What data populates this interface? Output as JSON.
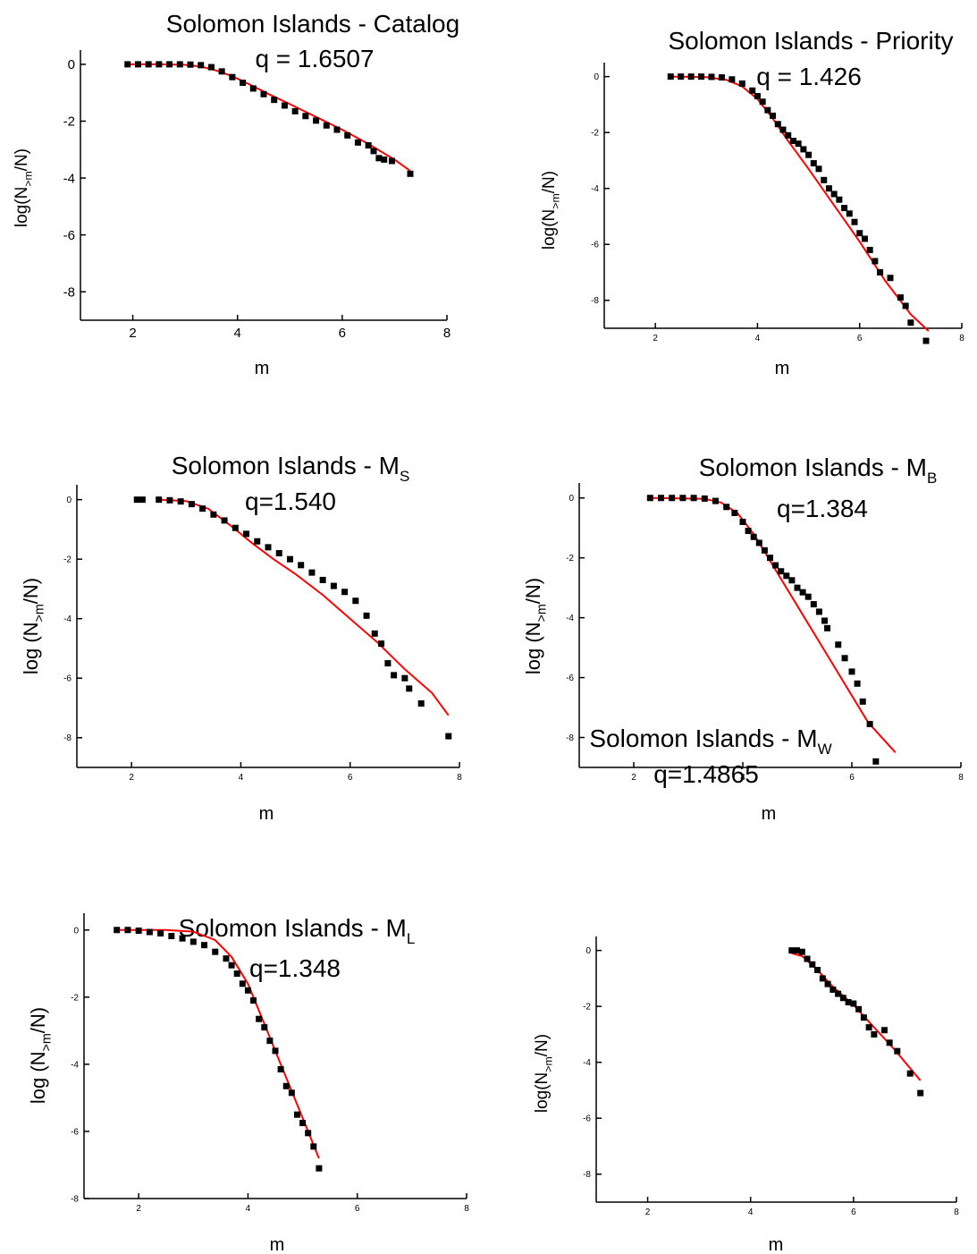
{
  "chart_data": [
    {
      "type": "scatter",
      "title_parts": [
        "Solomon Islands - Catalog"
      ],
      "annotation": "q = 1.6507",
      "xlabel": "m",
      "ylabel_parts": [
        "log(N",
        ">m",
        "/N)"
      ],
      "xlim": [
        1,
        8
      ],
      "ylim": [
        -9,
        0.5
      ],
      "xticks": [
        2,
        4,
        6,
        8
      ],
      "yticks": [
        0,
        -2,
        -4,
        -6,
        -8
      ],
      "points": {
        "color": "#000000",
        "x": [
          1.9,
          2.1,
          2.3,
          2.5,
          2.7,
          2.9,
          3.1,
          3.3,
          3.5,
          3.7,
          3.9,
          4.1,
          4.3,
          4.5,
          4.7,
          4.9,
          5.1,
          5.3,
          5.5,
          5.7,
          5.9,
          6.1,
          6.3,
          6.5,
          6.6,
          6.7,
          6.8,
          6.95,
          7.3
        ],
        "values": [
          0,
          0,
          0,
          0,
          0,
          0,
          -0.01,
          -0.03,
          -0.1,
          -0.25,
          -0.45,
          -0.65,
          -0.85,
          -1.05,
          -1.25,
          -1.45,
          -1.65,
          -1.82,
          -1.98,
          -2.15,
          -2.3,
          -2.5,
          -2.75,
          -2.85,
          -3.05,
          -3.3,
          -3.35,
          -3.4,
          -3.85
        ]
      },
      "fit": {
        "color": "#ff0000",
        "x": [
          1.9,
          2.5,
          3.0,
          3.3,
          3.6,
          3.9,
          4.2,
          4.6,
          5.0,
          5.5,
          6.0,
          6.5,
          7.0,
          7.3
        ],
        "values": [
          0,
          0,
          -0.02,
          -0.08,
          -0.22,
          -0.42,
          -0.68,
          -1.05,
          -1.4,
          -1.85,
          -2.3,
          -2.8,
          -3.35,
          -3.75
        ]
      }
    },
    {
      "type": "scatter",
      "title_parts": [
        "Solomon Islands - Priority"
      ],
      "annotation": "q = 1.426",
      "xlabel": "m",
      "ylabel_parts": [
        "log(N",
        ">m",
        "/N)"
      ],
      "xlim": [
        1,
        8
      ],
      "ylim": [
        -9,
        0.5
      ],
      "xticks": [
        2,
        4,
        6,
        8
      ],
      "yticks": [
        0,
        -2,
        -4,
        -6,
        -8
      ],
      "points": {
        "color": "#000000",
        "x": [
          2.3,
          2.5,
          2.7,
          2.9,
          3.1,
          3.3,
          3.5,
          3.7,
          3.9,
          4.0,
          4.1,
          4.2,
          4.3,
          4.4,
          4.5,
          4.6,
          4.7,
          4.8,
          4.9,
          5.0,
          5.1,
          5.2,
          5.3,
          5.4,
          5.5,
          5.6,
          5.7,
          5.8,
          5.9,
          6.0,
          6.1,
          6.2,
          6.3,
          6.4,
          6.6,
          6.8,
          6.9,
          7.0,
          7.3
        ],
        "values": [
          0,
          0,
          0,
          0,
          -0.01,
          -0.03,
          -0.1,
          -0.25,
          -0.5,
          -0.7,
          -0.9,
          -1.2,
          -1.4,
          -1.7,
          -1.9,
          -2.1,
          -2.3,
          -2.4,
          -2.6,
          -2.8,
          -3.1,
          -3.3,
          -3.7,
          -4.0,
          -4.2,
          -4.4,
          -4.7,
          -4.9,
          -5.2,
          -5.6,
          -5.8,
          -6.2,
          -6.6,
          -7.0,
          -7.2,
          -7.9,
          -8.2,
          -8.8,
          -9.45
        ]
      },
      "fit": {
        "color": "#ff0000",
        "x": [
          2.3,
          3.0,
          3.4,
          3.7,
          4.0,
          4.3,
          4.6,
          5.0,
          5.5,
          6.0,
          6.5,
          7.0,
          7.35
        ],
        "values": [
          0,
          -0.02,
          -0.12,
          -0.35,
          -0.8,
          -1.5,
          -2.3,
          -3.3,
          -4.6,
          -5.9,
          -7.3,
          -8.5,
          -9.1
        ]
      }
    },
    {
      "type": "scatter",
      "title_parts": [
        "Solomon Islands - M",
        "S"
      ],
      "annotation": "q=1.540",
      "xlabel": "m",
      "ylabel_parts": [
        "log (N",
        ">m",
        "/N)"
      ],
      "xlim": [
        1,
        8
      ],
      "ylim": [
        -9,
        0.5
      ],
      "xticks": [
        2,
        4,
        6,
        8
      ],
      "yticks": [
        0,
        -2,
        -4,
        -6,
        -8
      ],
      "points": {
        "color": "#000000",
        "x": [
          2.1,
          2.2,
          2.5,
          2.7,
          2.9,
          3.1,
          3.3,
          3.5,
          3.7,
          3.9,
          4.1,
          4.3,
          4.5,
          4.7,
          4.9,
          5.1,
          5.3,
          5.5,
          5.7,
          5.9,
          6.1,
          6.3,
          6.45,
          6.57,
          6.69,
          6.8,
          7.0,
          7.08,
          7.3,
          7.8
        ],
        "values": [
          0,
          0,
          0,
          -0.02,
          -0.06,
          -0.15,
          -0.3,
          -0.5,
          -0.7,
          -0.95,
          -1.15,
          -1.4,
          -1.6,
          -1.8,
          -2.0,
          -2.2,
          -2.45,
          -2.7,
          -2.9,
          -3.1,
          -3.4,
          -3.9,
          -4.5,
          -4.84,
          -5.5,
          -5.9,
          -6.0,
          -6.35,
          -6.85,
          -7.95
        ]
      },
      "fit": {
        "color": "#ff0000",
        "x": [
          2.5,
          3.0,
          3.4,
          3.8,
          4.2,
          4.6,
          5.0,
          5.5,
          6.0,
          6.5,
          7.0,
          7.5,
          7.8
        ],
        "values": [
          0,
          -0.05,
          -0.3,
          -0.85,
          -1.45,
          -2.0,
          -2.5,
          -3.2,
          -4.0,
          -4.8,
          -5.7,
          -6.5,
          -7.25
        ]
      }
    },
    {
      "type": "scatter",
      "title_parts": [
        "Solomon Islands - M",
        "B"
      ],
      "annotation": "q=1.384",
      "xlabel": "m",
      "ylabel_parts": [
        "log (N",
        ">m",
        "/N)"
      ],
      "xlim": [
        1,
        8
      ],
      "ylim": [
        -9,
        0.5
      ],
      "xticks": [
        2,
        4,
        6,
        8
      ],
      "yticks": [
        0,
        -2,
        -4,
        -6,
        -8
      ],
      "points": {
        "color": "#000000",
        "x": [
          2.3,
          2.5,
          2.7,
          2.9,
          3.1,
          3.3,
          3.5,
          3.7,
          3.85,
          4.0,
          4.1,
          4.2,
          4.3,
          4.4,
          4.5,
          4.6,
          4.7,
          4.8,
          4.9,
          5.0,
          5.1,
          5.2,
          5.3,
          5.4,
          5.5,
          5.55,
          5.75,
          5.87,
          6.0,
          6.1,
          6.2,
          6.33,
          6.44
        ],
        "values": [
          0,
          0,
          0,
          0,
          0,
          -0.02,
          -0.1,
          -0.3,
          -0.5,
          -0.8,
          -1.1,
          -1.3,
          -1.5,
          -1.75,
          -2.0,
          -2.25,
          -2.45,
          -2.6,
          -2.75,
          -3.0,
          -3.15,
          -3.3,
          -3.55,
          -3.8,
          -4.1,
          -4.35,
          -4.9,
          -5.35,
          -5.8,
          -6.2,
          -6.8,
          -7.55,
          -8.8
        ]
      },
      "fit": {
        "color": "#ff0000",
        "x": [
          2.3,
          3.3,
          3.6,
          3.9,
          4.2,
          4.5,
          4.8,
          5.1,
          5.4,
          5.7,
          6.0,
          6.3,
          6.8
        ],
        "values": [
          0,
          -0.03,
          -0.15,
          -0.5,
          -1.2,
          -2.1,
          -3.0,
          -3.9,
          -4.8,
          -5.7,
          -6.6,
          -7.5,
          -8.5
        ]
      }
    },
    {
      "type": "scatter",
      "title_parts": [
        "Solomon Islands - M",
        "L"
      ],
      "annotation": "q=1.348",
      "xlabel": "m",
      "ylabel_parts": [
        "log (N",
        ">m",
        "/N)"
      ],
      "xlim": [
        1,
        8
      ],
      "ylim": [
        -8,
        0.5
      ],
      "xticks": [
        2,
        4,
        6,
        8
      ],
      "yticks": [
        0,
        -2,
        -4,
        -6,
        -8
      ],
      "points": {
        "color": "#000000",
        "x": [
          1.6,
          1.8,
          2.0,
          2.2,
          2.4,
          2.6,
          2.8,
          3.0,
          3.2,
          3.4,
          3.6,
          3.7,
          3.8,
          3.9,
          4.0,
          4.1,
          4.2,
          4.3,
          4.4,
          4.5,
          4.6,
          4.7,
          4.8,
          4.9,
          5.0,
          5.1,
          5.2,
          5.3
        ],
        "values": [
          0,
          0,
          -0.02,
          -0.06,
          -0.1,
          -0.18,
          -0.25,
          -0.35,
          -0.45,
          -0.65,
          -0.85,
          -1.05,
          -1.3,
          -1.6,
          -1.8,
          -2.1,
          -2.65,
          -2.9,
          -3.3,
          -3.6,
          -4.15,
          -4.65,
          -4.85,
          -5.5,
          -5.75,
          -6.05,
          -6.45,
          -7.1
        ]
      },
      "fit": {
        "color": "#ff0000",
        "x": [
          1.6,
          2.5,
          3.0,
          3.4,
          3.7,
          4.0,
          4.3,
          4.6,
          4.9,
          5.1,
          5.3
        ],
        "values": [
          0,
          0,
          -0.05,
          -0.3,
          -0.8,
          -1.6,
          -2.8,
          -4.0,
          -5.2,
          -6.0,
          -6.8
        ]
      }
    },
    {
      "type": "scatter",
      "title_parts": [
        "Solomon Islands - M",
        "W"
      ],
      "annotation": "q=1.4865",
      "xlabel": "m",
      "ylabel_parts": [
        "log(N",
        ">m",
        "/N)"
      ],
      "xlim": [
        1,
        8
      ],
      "ylim": [
        -9,
        0.5
      ],
      "xticks": [
        2,
        4,
        6,
        8
      ],
      "yticks": [
        0,
        -2,
        -4,
        -6,
        -8
      ],
      "points": {
        "color": "#000000",
        "x": [
          4.8,
          4.9,
          5.0,
          5.1,
          5.2,
          5.3,
          5.4,
          5.5,
          5.6,
          5.7,
          5.8,
          5.9,
          6.0,
          6.1,
          6.2,
          6.3,
          6.4,
          6.6,
          6.7,
          6.85,
          7.1,
          7.3
        ],
        "values": [
          0,
          0,
          -0.05,
          -0.3,
          -0.5,
          -0.7,
          -1.0,
          -1.2,
          -1.4,
          -1.55,
          -1.7,
          -1.85,
          -1.9,
          -2.1,
          -2.4,
          -2.75,
          -3.0,
          -2.85,
          -3.3,
          -3.6,
          -4.4,
          -5.1
        ]
      },
      "fit": {
        "color": "#ff0000",
        "x": [
          4.8,
          5.0,
          5.3,
          5.6,
          6.0,
          6.4,
          6.8,
          7.3
        ],
        "values": [
          -0.1,
          -0.2,
          -0.7,
          -1.3,
          -1.95,
          -2.75,
          -3.55,
          -4.65
        ]
      }
    }
  ]
}
